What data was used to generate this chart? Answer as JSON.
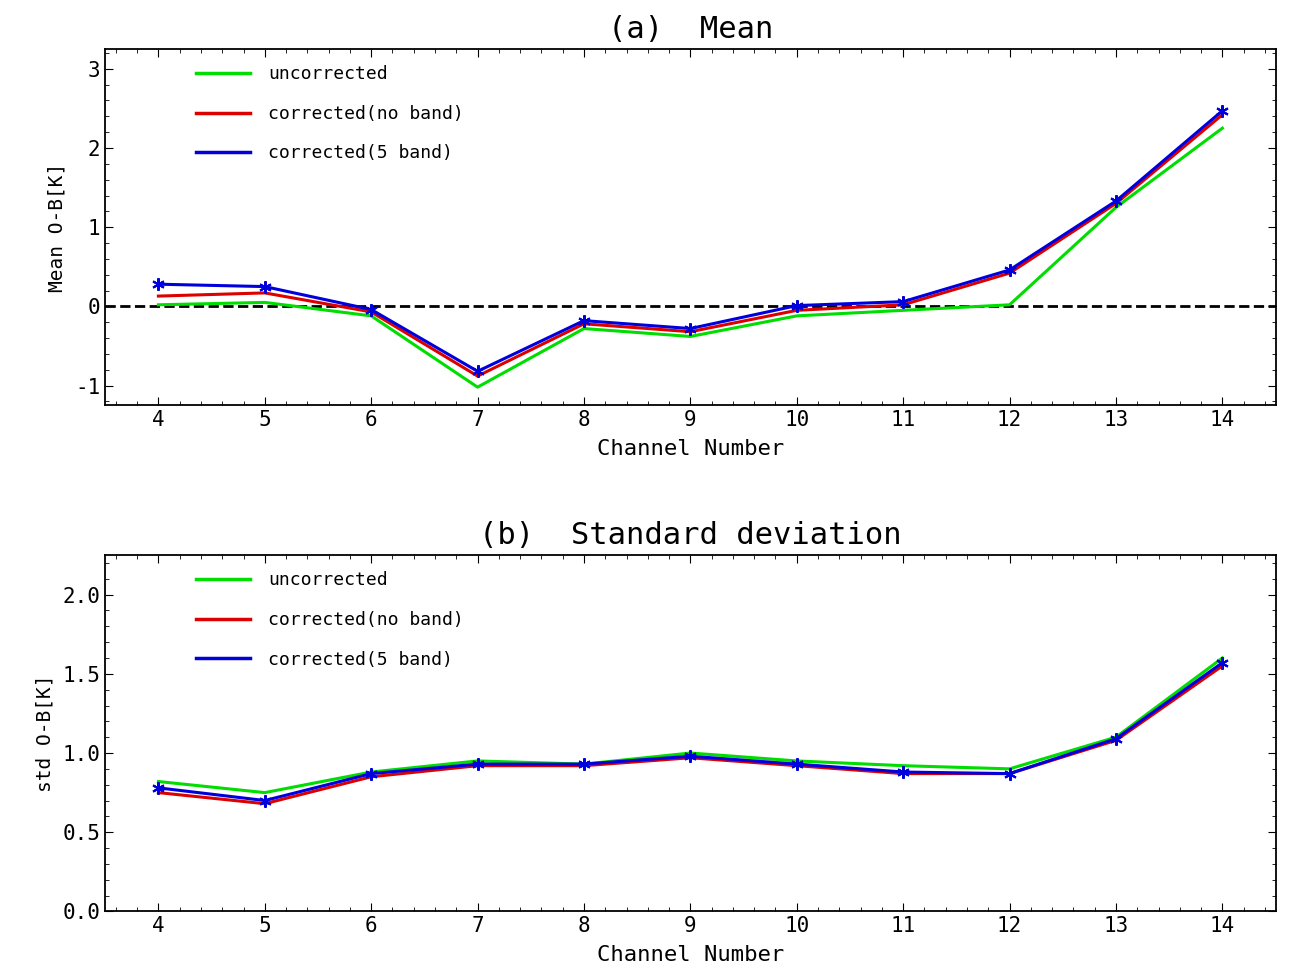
{
  "channels": [
    4,
    5,
    6,
    7,
    8,
    9,
    10,
    11,
    12,
    13,
    14
  ],
  "mean_uncorrected": [
    0.02,
    0.05,
    -0.12,
    -1.02,
    -0.28,
    -0.38,
    -0.12,
    -0.05,
    0.02,
    1.25,
    2.25
  ],
  "mean_noband": [
    0.13,
    0.17,
    -0.07,
    -0.88,
    -0.22,
    -0.32,
    -0.05,
    0.02,
    0.42,
    1.3,
    2.42
  ],
  "mean_5band": [
    0.28,
    0.25,
    -0.04,
    -0.82,
    -0.18,
    -0.28,
    0.01,
    0.06,
    0.46,
    1.33,
    2.47
  ],
  "std_uncorrected": [
    0.82,
    0.75,
    0.88,
    0.95,
    0.93,
    1.0,
    0.95,
    0.92,
    0.9,
    1.1,
    1.6
  ],
  "std_noband": [
    0.75,
    0.68,
    0.85,
    0.92,
    0.92,
    0.97,
    0.92,
    0.87,
    0.87,
    1.08,
    1.55
  ],
  "std_5band": [
    0.78,
    0.7,
    0.87,
    0.93,
    0.93,
    0.98,
    0.93,
    0.88,
    0.87,
    1.09,
    1.57
  ],
  "title_a": "(a)  Mean",
  "title_b": "(b)  Standard deviation",
  "xlabel": "Channel Number",
  "ylabel_a": "Mean O-B[K]",
  "ylabel_b": "std O-B[K]",
  "color_uncorrected": "#00dd00",
  "color_noband": "#dd0000",
  "color_5band": "#0000dd",
  "legend_labels": [
    "uncorrected",
    "corrected(no band)",
    "corrected(5 band)"
  ],
  "mean_ylim": [
    -1.25,
    3.25
  ],
  "mean_yticks": [
    -1,
    0,
    1,
    2,
    3
  ],
  "std_ylim": [
    0.0,
    2.25
  ],
  "std_yticks": [
    0.0,
    0.5,
    1.0,
    1.5,
    2.0
  ],
  "xlim": [
    3.5,
    14.5
  ],
  "xticks": [
    4,
    5,
    6,
    7,
    8,
    9,
    10,
    11,
    12,
    13,
    14
  ]
}
